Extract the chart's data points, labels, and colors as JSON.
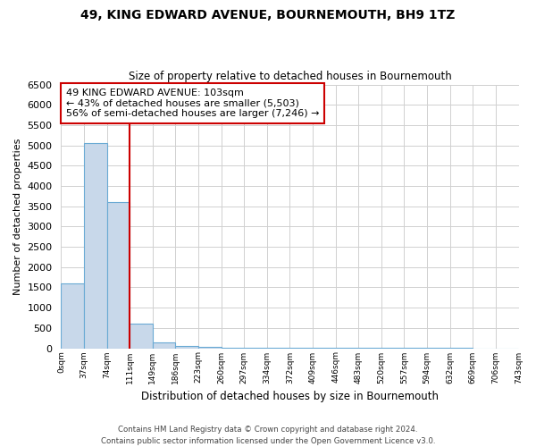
{
  "title": "49, KING EDWARD AVENUE, BOURNEMOUTH, BH9 1TZ",
  "subtitle": "Size of property relative to detached houses in Bournemouth",
  "xlabel": "Distribution of detached houses by size in Bournemouth",
  "ylabel": "Number of detached properties",
  "bar_values": [
    1600,
    5050,
    3600,
    600,
    150,
    50,
    30,
    20,
    15,
    10,
    8,
    5,
    3,
    2,
    2,
    1,
    1,
    1,
    0,
    0
  ],
  "bin_labels": [
    "0sqm",
    "37sqm",
    "74sqm",
    "111sqm",
    "149sqm",
    "186sqm",
    "223sqm",
    "260sqm",
    "297sqm",
    "334sqm",
    "372sqm",
    "409sqm",
    "446sqm",
    "483sqm",
    "520sqm",
    "557sqm",
    "594sqm",
    "632sqm",
    "669sqm",
    "706sqm",
    "743sqm"
  ],
  "bar_color": "#c8d8ea",
  "bar_edge_color": "#6aaad4",
  "vline_x": 2.5,
  "vline_color": "#cc0000",
  "annotation_text": "49 KING EDWARD AVENUE: 103sqm\n← 43% of detached houses are smaller (5,503)\n56% of semi-detached houses are larger (7,246) →",
  "annotation_box_color": "#ffffff",
  "annotation_box_edge": "#cc0000",
  "ylim": [
    0,
    6500
  ],
  "yticks": [
    0,
    500,
    1000,
    1500,
    2000,
    2500,
    3000,
    3500,
    4000,
    4500,
    5000,
    5500,
    6000,
    6500
  ],
  "footer": "Contains HM Land Registry data © Crown copyright and database right 2024.\nContains public sector information licensed under the Open Government Licence v3.0.",
  "bg_color": "#ffffff",
  "grid_color": "#d0d0d0"
}
